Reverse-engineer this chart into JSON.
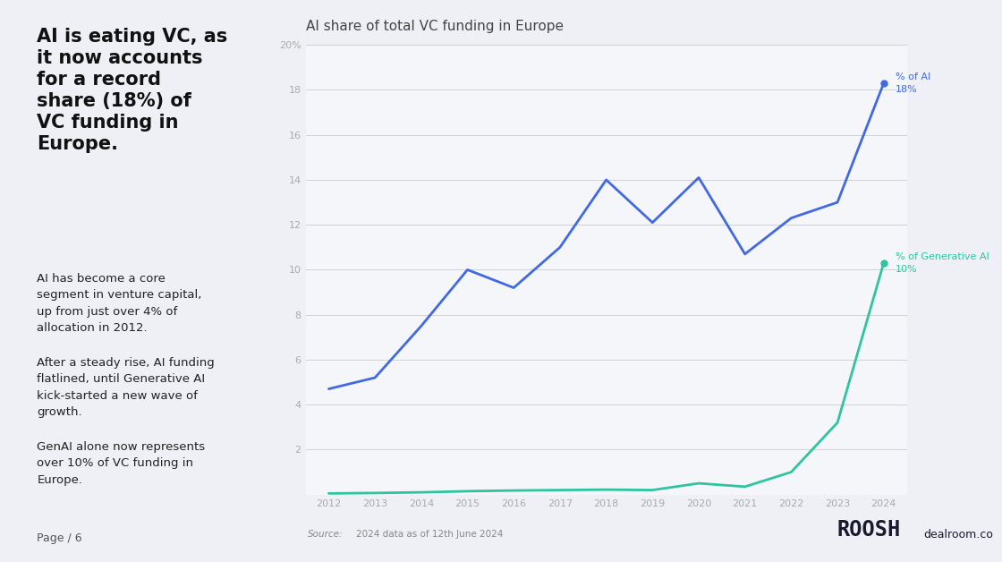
{
  "title": "AI share of total VC funding in Europe",
  "page_bg": "#eef0f5",
  "chart_bg": "#f5f6fa",
  "left_panel_bg": "#eef0f5",
  "heading_line1": "AI is eating VC, as",
  "heading_line2": "it now accounts",
  "heading_line3": "for a record",
  "heading_line4": "share (18%) of",
  "heading_line5": "VC funding in",
  "heading_line6": "Europe.",
  "para1": "AI has become a core\nsegment in venture capital,\nup from just over 4% of\nallocation in 2012.",
  "para2": "After a steady rise, AI funding\nflatlined, until Generative AI\nkick-started a new wave of\ngrowth.",
  "para3": "GenAI alone now represents\nover 10% of VC funding in\nEurope.",
  "page_label": "Page / 6",
  "source_label": "Source:",
  "source_text": "2024 data as of 12th June 2024",
  "years_ai": [
    2012,
    2013,
    2014,
    2015,
    2016,
    2017,
    2018,
    2019,
    2020,
    2021,
    2022,
    2023,
    2024
  ],
  "values_ai": [
    4.7,
    5.2,
    7.5,
    10.0,
    9.2,
    11.0,
    14.0,
    12.1,
    14.1,
    10.7,
    12.3,
    13.0,
    18.3
  ],
  "years_genai": [
    2012,
    2013,
    2014,
    2015,
    2016,
    2017,
    2018,
    2019,
    2020,
    2021,
    2022,
    2023,
    2024
  ],
  "values_genai": [
    0.05,
    0.07,
    0.1,
    0.15,
    0.18,
    0.2,
    0.22,
    0.2,
    0.5,
    0.35,
    1.0,
    3.2,
    10.3
  ],
  "ai_color": "#4169e1",
  "genai_color": "#2ec4a0",
  "grid_color": "#cccccc",
  "tick_color": "#aaaaaa",
  "ylim": [
    0,
    20
  ],
  "yticks": [
    0,
    2,
    4,
    6,
    8,
    10,
    12,
    14,
    16,
    18,
    20
  ],
  "ytick_labels": [
    "",
    "2",
    "4",
    "6",
    "8",
    "10",
    "12",
    "14",
    "16",
    "18",
    "20%"
  ],
  "xticks": [
    2012,
    2013,
    2014,
    2015,
    2016,
    2017,
    2018,
    2019,
    2020,
    2021,
    2022,
    2023,
    2024
  ],
  "label_ai": "% of AI",
  "label_ai_val": "18%",
  "label_genai": "% of Generative AI",
  "label_genai_val": "10%",
  "roosh_color": "#1a1a2e",
  "dealroom_color": "#1a1a2e"
}
